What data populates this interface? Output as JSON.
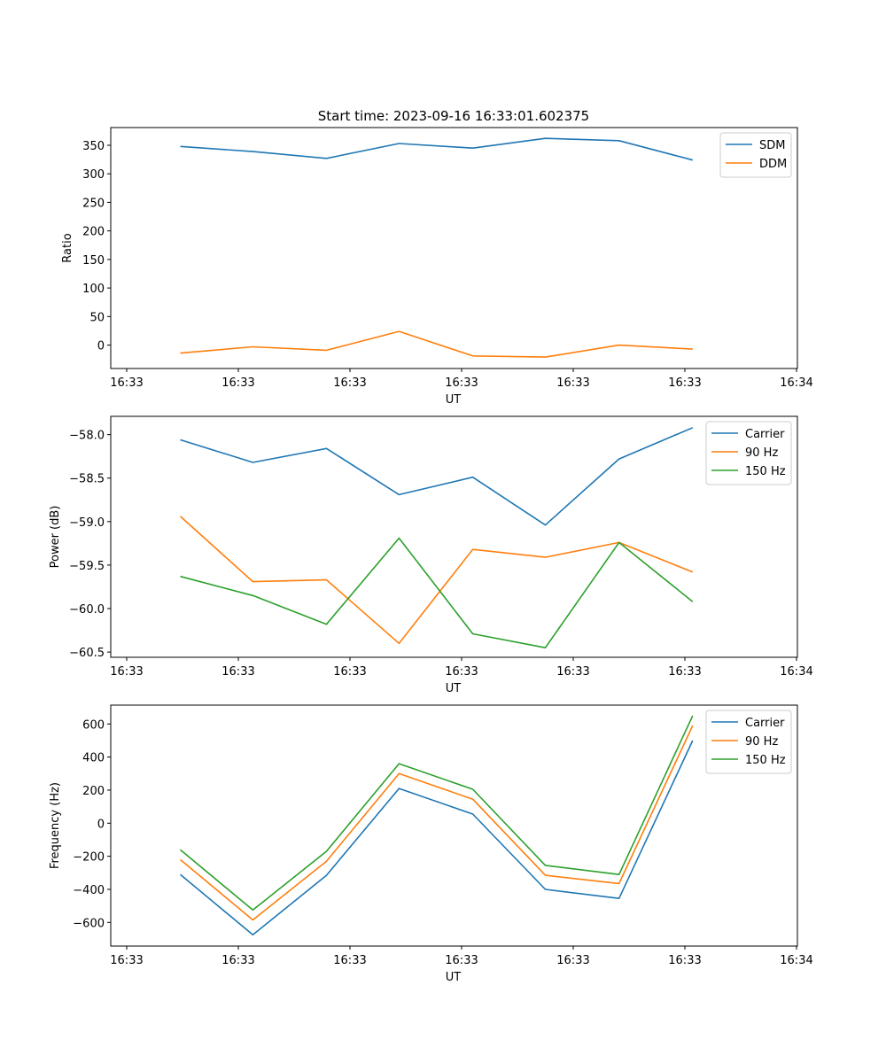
{
  "figure_title": "Start time: 2023-09-16 16:33:01.602375",
  "chart_data": [
    {
      "type": "line",
      "title": "Start time: 2023-09-16 16:33:01.602375",
      "xlabel": "UT",
      "ylabel": "Ratio",
      "x_unit": "seconds after 16:33:00",
      "x": [
        4.8,
        11.3,
        17.9,
        24.4,
        31.0,
        37.5,
        44.1,
        50.7
      ],
      "xlim": [
        0,
        60
      ],
      "xticks": [
        0,
        10,
        20,
        30,
        40,
        50,
        60
      ],
      "xtick_labels": [
        "16:33",
        "16:33",
        "16:33",
        "16:33",
        "16:33",
        "16:33",
        "16:34"
      ],
      "ylim": [
        -41,
        381
      ],
      "yticks": [
        0,
        50,
        100,
        150,
        200,
        250,
        300,
        350
      ],
      "ytick_labels": [
        "0",
        "50",
        "100",
        "150",
        "200",
        "250",
        "300",
        "350"
      ],
      "legend_position": "top-right",
      "grid": false,
      "series": [
        {
          "name": "SDM",
          "color": "#1f77b4",
          "values": [
            348,
            339,
            327,
            353,
            345,
            362,
            358,
            324
          ]
        },
        {
          "name": "DDM",
          "color": "#ff7f0e",
          "values": [
            -14,
            -3,
            -9,
            24,
            -19,
            -21,
            0,
            -7
          ]
        }
      ]
    },
    {
      "type": "line",
      "title": "",
      "xlabel": "UT",
      "ylabel": "Power (dB)",
      "x_unit": "seconds after 16:33:00",
      "x": [
        4.8,
        11.3,
        17.9,
        24.4,
        31.0,
        37.5,
        44.1,
        50.7
      ],
      "xlim": [
        0,
        60
      ],
      "xticks": [
        0,
        10,
        20,
        30,
        40,
        50,
        60
      ],
      "xtick_labels": [
        "16:33",
        "16:33",
        "16:33",
        "16:33",
        "16:33",
        "16:33",
        "16:34"
      ],
      "ylim": [
        -60.56,
        -57.79
      ],
      "yticks": [
        -60.5,
        -60.0,
        -59.5,
        -59.0,
        -58.5,
        -58.0
      ],
      "ytick_labels": [
        "−60.5",
        "−60.0",
        "−59.5",
        "−59.0",
        "−58.5",
        "−58.0"
      ],
      "legend_position": "top-right",
      "grid": false,
      "series": [
        {
          "name": "Carrier",
          "color": "#1f77b4",
          "values": [
            -58.06,
            -58.32,
            -58.16,
            -58.69,
            -58.49,
            -59.04,
            -58.28,
            -57.92
          ]
        },
        {
          "name": "90 Hz",
          "color": "#ff7f0e",
          "values": [
            -58.94,
            -59.69,
            -59.67,
            -60.4,
            -59.32,
            -59.41,
            -59.24,
            -59.58
          ]
        },
        {
          "name": "150 Hz",
          "color": "#2ca02c",
          "values": [
            -59.63,
            -59.85,
            -60.18,
            -59.19,
            -60.29,
            -60.45,
            -59.24,
            -59.92
          ]
        }
      ]
    },
    {
      "type": "line",
      "title": "",
      "xlabel": "UT",
      "ylabel": "Frequency (Hz)",
      "x_unit": "seconds after 16:33:00",
      "x": [
        4.8,
        11.3,
        17.9,
        24.4,
        31.0,
        37.5,
        44.1,
        50.7
      ],
      "xlim": [
        0,
        60
      ],
      "xticks": [
        0,
        10,
        20,
        30,
        40,
        50,
        60
      ],
      "xtick_labels": [
        "16:33",
        "16:33",
        "16:33",
        "16:33",
        "16:33",
        "16:33",
        "16:34"
      ],
      "ylim": [
        -743,
        714
      ],
      "yticks": [
        -600,
        -400,
        -200,
        0,
        200,
        400,
        600
      ],
      "ytick_labels": [
        "−600",
        "−400",
        "−200",
        "0",
        "200",
        "400",
        "600"
      ],
      "legend_position": "top-right",
      "grid": false,
      "series": [
        {
          "name": "Carrier",
          "color": "#1f77b4",
          "values": [
            -310,
            -675,
            -315,
            210,
            55,
            -400,
            -455,
            500
          ]
        },
        {
          "name": "90 Hz",
          "color": "#ff7f0e",
          "values": [
            -220,
            -585,
            -230,
            300,
            145,
            -315,
            -365,
            590
          ]
        },
        {
          "name": "150 Hz",
          "color": "#2ca02c",
          "values": [
            -160,
            -525,
            -170,
            360,
            205,
            -255,
            -310,
            650
          ]
        }
      ]
    }
  ]
}
